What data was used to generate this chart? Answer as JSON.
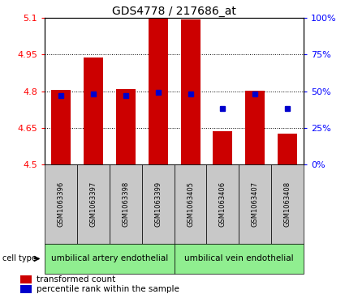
{
  "title": "GDS4778 / 217686_at",
  "samples": [
    "GSM1063396",
    "GSM1063397",
    "GSM1063398",
    "GSM1063399",
    "GSM1063405",
    "GSM1063406",
    "GSM1063407",
    "GSM1063408"
  ],
  "bar_tops": [
    4.805,
    4.938,
    4.808,
    5.095,
    5.093,
    4.638,
    4.803,
    4.628
  ],
  "bar_base": 4.5,
  "blue_percentiles": [
    47,
    48,
    47,
    49,
    48,
    38,
    48,
    38
  ],
  "ylim_left": [
    4.5,
    5.1
  ],
  "ylim_right": [
    0,
    100
  ],
  "yticks_left": [
    4.5,
    4.65,
    4.8,
    4.95,
    5.1
  ],
  "ytick_labels_left": [
    "4.5",
    "4.65",
    "4.8",
    "4.95",
    "5.1"
  ],
  "yticks_right": [
    0,
    25,
    50,
    75,
    100
  ],
  "ytick_labels_right": [
    "0%",
    "25%",
    "50%",
    "75%",
    "100%"
  ],
  "bar_color": "#cc0000",
  "blue_color": "#0000cc",
  "bar_width": 0.6,
  "group1_label": "umbilical artery endothelial",
  "group2_label": "umbilical vein endothelial",
  "cell_type_label": "cell type",
  "legend1": "transformed count",
  "legend2": "percentile rank within the sample",
  "background_label": "#c8c8c8",
  "background_group": "#90ee90",
  "title_fontsize": 10,
  "tick_fontsize": 8,
  "sample_fontsize": 6,
  "group_fontsize": 7.5,
  "legend_fontsize": 7.5
}
